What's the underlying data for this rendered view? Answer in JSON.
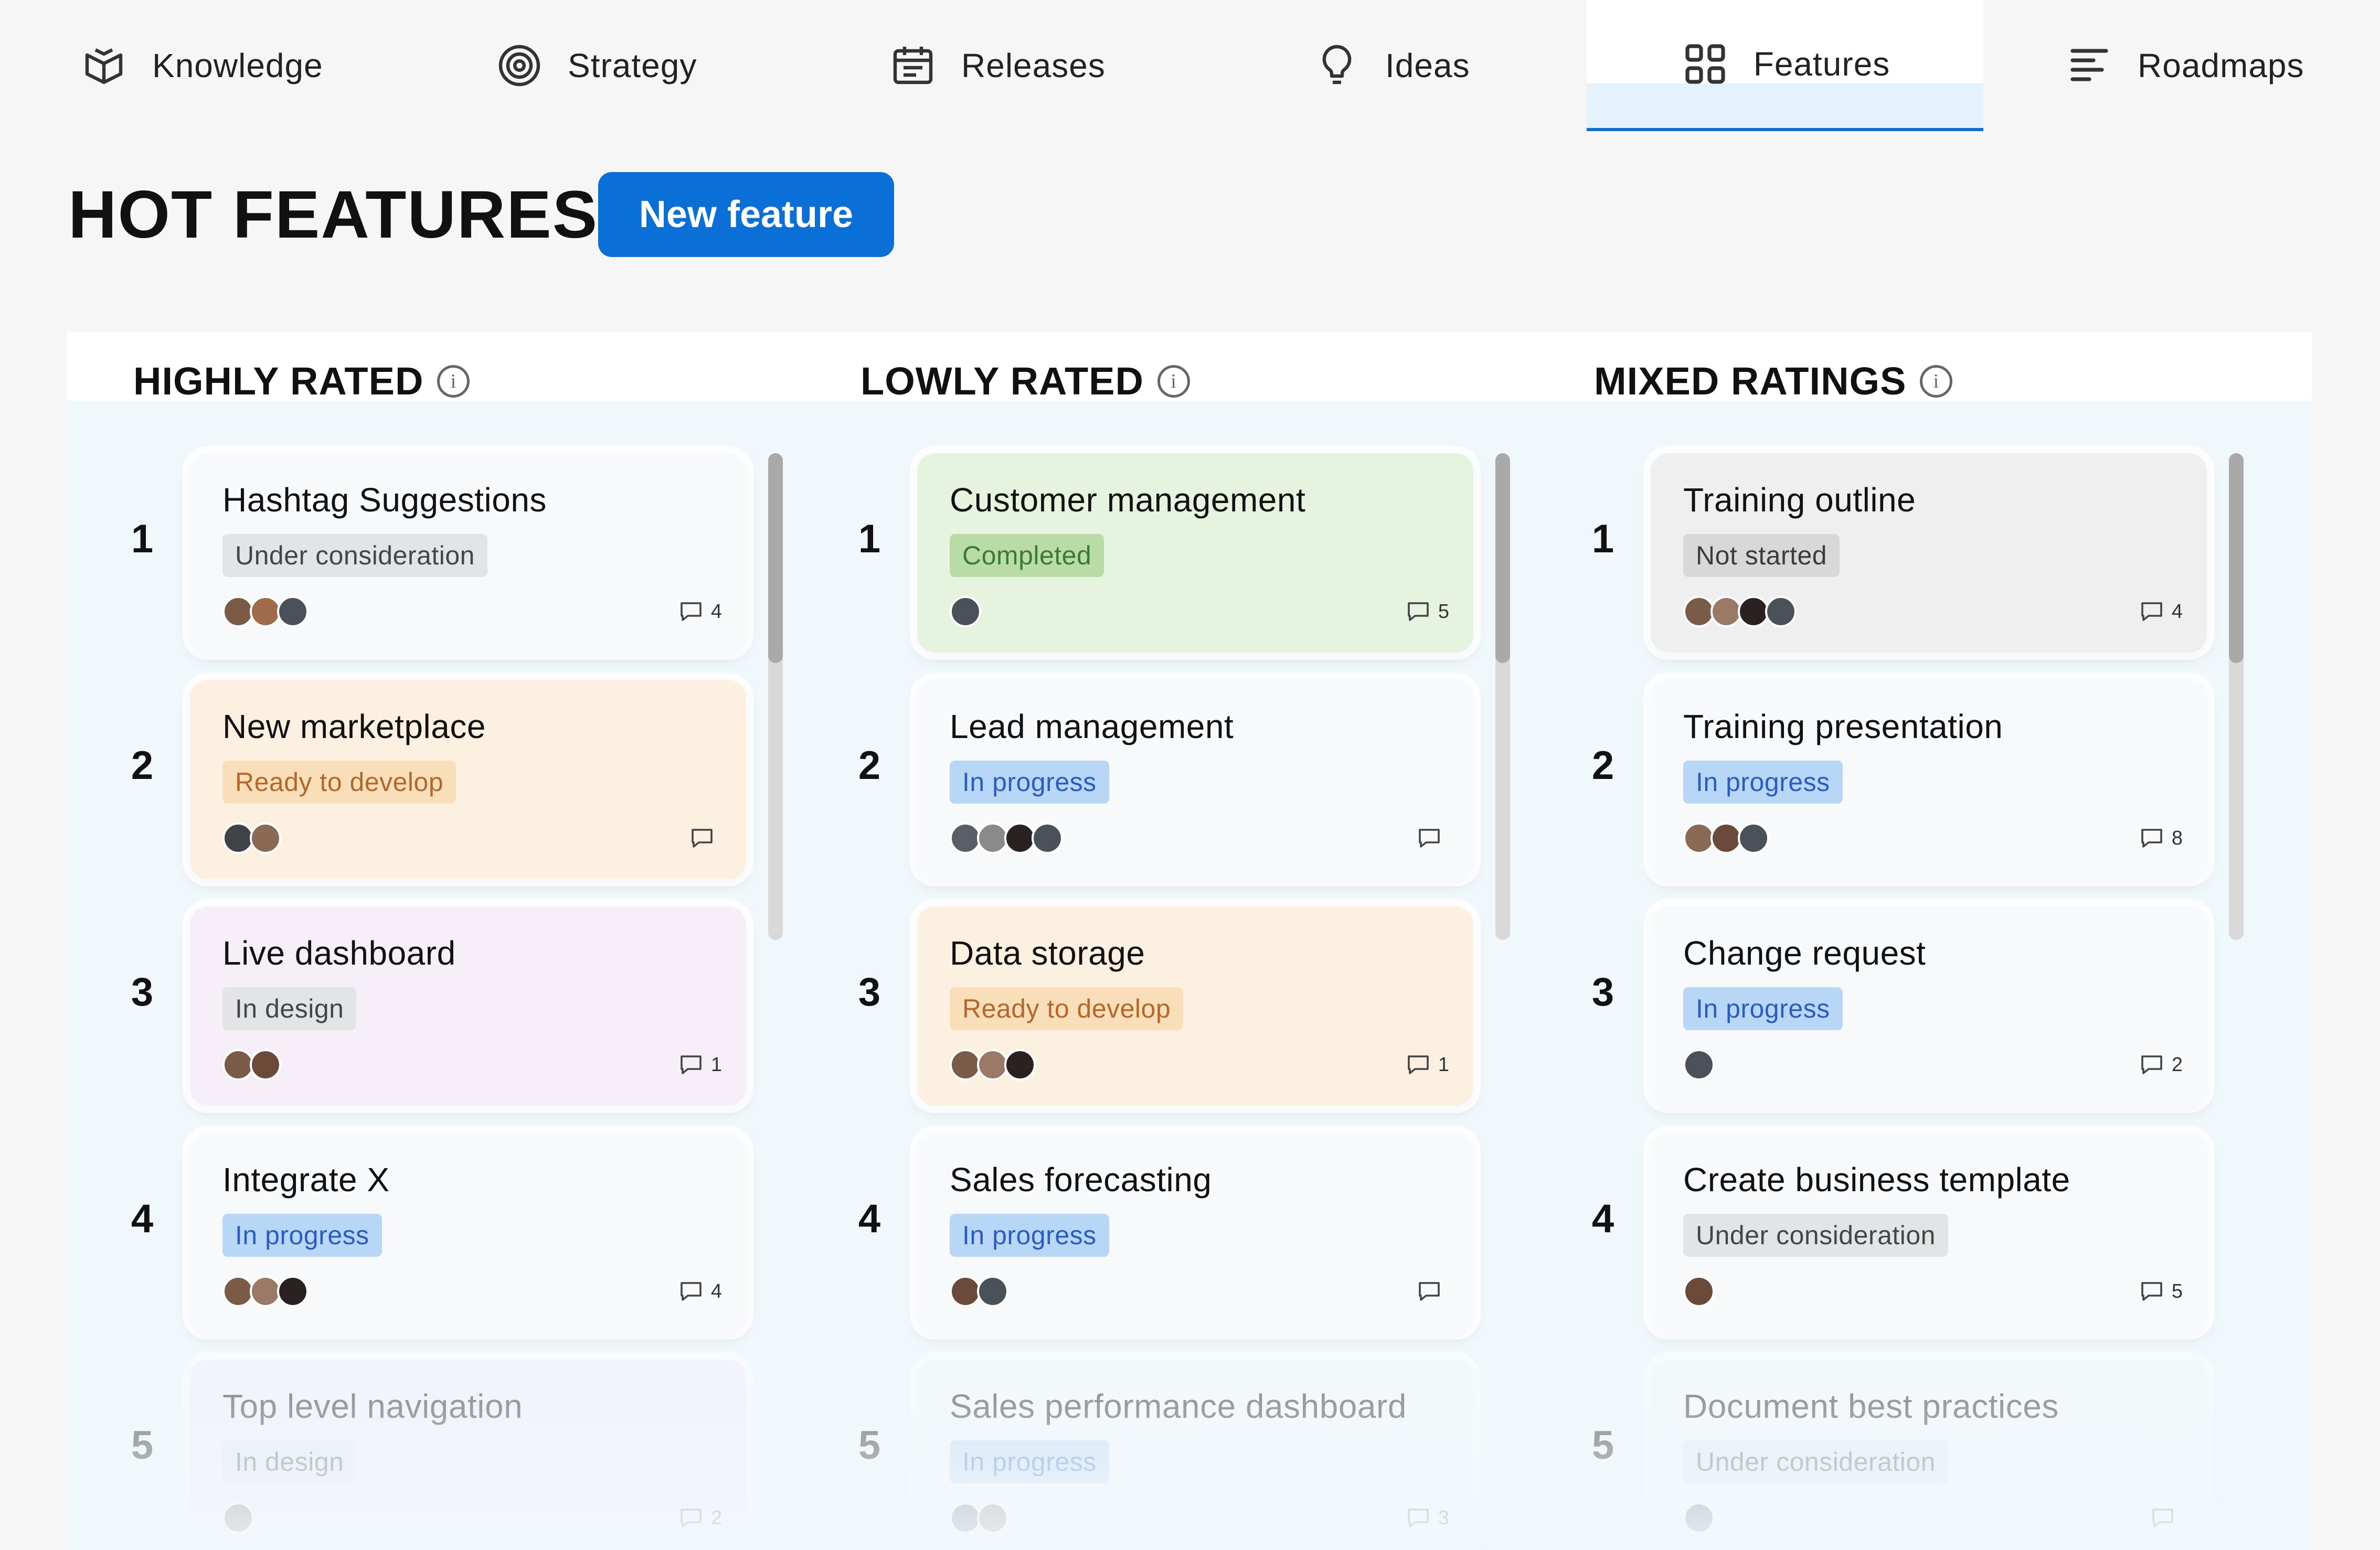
{
  "nav": {
    "items": [
      {
        "label": "Knowledge",
        "icon": "book-icon"
      },
      {
        "label": "Strategy",
        "icon": "target-icon"
      },
      {
        "label": "Releases",
        "icon": "calendar-icon"
      },
      {
        "label": "Ideas",
        "icon": "lightbulb-icon"
      },
      {
        "label": "Features",
        "icon": "grid-icon",
        "active": true
      },
      {
        "label": "Roadmaps",
        "icon": "roadmap-icon"
      }
    ]
  },
  "header": {
    "title": "HOT FEATURES",
    "new_button": "New feature"
  },
  "columns": [
    {
      "title": "HIGHLY RATED",
      "items": [
        {
          "rank": "1",
          "title": "Hashtag Suggestions",
          "status": "Under consideration",
          "comments": "4"
        },
        {
          "rank": "2",
          "title": "New marketplace",
          "status": "Ready to develop",
          "comments": ""
        },
        {
          "rank": "3",
          "title": "Live dashboard",
          "status": "In design",
          "comments": "1"
        },
        {
          "rank": "4",
          "title": "Integrate X",
          "status": "In progress",
          "comments": "4"
        },
        {
          "rank": "5",
          "title": "Top level navigation",
          "status": "In design",
          "comments": "2"
        }
      ]
    },
    {
      "title": "LOWLY RATED",
      "items": [
        {
          "rank": "1",
          "title": "Customer management",
          "status": "Completed",
          "comments": "5"
        },
        {
          "rank": "2",
          "title": "Lead management",
          "status": "In progress",
          "comments": ""
        },
        {
          "rank": "3",
          "title": "Data storage",
          "status": "Ready to develop",
          "comments": "1"
        },
        {
          "rank": "4",
          "title": "Sales forecasting",
          "status": "In progress",
          "comments": ""
        },
        {
          "rank": "5",
          "title": "Sales performance dashboard",
          "status": "In progress",
          "comments": "3"
        }
      ]
    },
    {
      "title": "MIXED RATINGS",
      "items": [
        {
          "rank": "1",
          "title": "Training outline",
          "status": "Not started",
          "comments": "4"
        },
        {
          "rank": "2",
          "title": "Training presentation",
          "status": "In progress",
          "comments": "8"
        },
        {
          "rank": "3",
          "title": "Change request",
          "status": "In progress",
          "comments": "2"
        },
        {
          "rank": "4",
          "title": "Create business template",
          "status": "Under consideration",
          "comments": "5"
        },
        {
          "rank": "5",
          "title": "Document best practices",
          "status": "Under consideration",
          "comments": ""
        }
      ]
    }
  ],
  "colors": {
    "accent": "#0a6fd6",
    "board_background": "#f1f8fc"
  }
}
